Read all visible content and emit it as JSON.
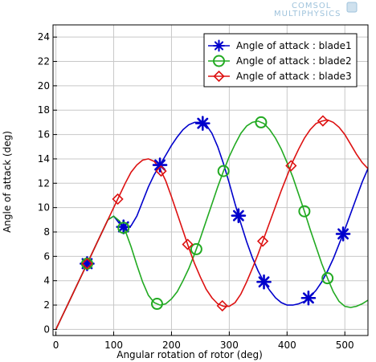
{
  "watermark": {
    "line1": "COMSOL",
    "line2": "MULTIPHYSICS"
  },
  "chart_data": {
    "type": "line",
    "title": "",
    "xlabel": "Angular rotation of rotor (deg)",
    "ylabel": "Angle of attack (deg)",
    "xlim": [
      -5,
      540
    ],
    "ylim": [
      -0.5,
      25
    ],
    "xticks": [
      0,
      100,
      200,
      300,
      400,
      500
    ],
    "yticks": [
      0,
      2,
      4,
      6,
      8,
      10,
      12,
      14,
      16,
      18,
      20,
      22,
      24
    ],
    "grid": true,
    "legend_position": "top-right",
    "series": [
      {
        "name": "Angle of attack : blade1",
        "color": "#0000cc",
        "marker": "asterisk",
        "x": [
          0,
          10,
          20,
          30,
          40,
          50,
          60,
          70,
          80,
          90,
          100,
          110,
          120,
          130,
          140,
          150,
          160,
          170,
          180,
          190,
          200,
          210,
          220,
          230,
          240,
          250,
          260,
          270,
          280,
          290,
          300,
          310,
          320,
          330,
          340,
          350,
          360,
          370,
          380,
          390,
          400,
          410,
          420,
          430,
          440,
          450,
          460,
          470,
          480,
          490,
          500,
          510,
          520,
          530,
          540
        ],
        "y": [
          0.0,
          1.0,
          2.0,
          3.0,
          4.0,
          5.0,
          6.0,
          7.0,
          8.0,
          9.0,
          9.3,
          8.7,
          8.3,
          8.5,
          9.3,
          10.5,
          11.7,
          12.7,
          13.5,
          14.3,
          15.1,
          15.8,
          16.4,
          16.8,
          17.0,
          17.0,
          16.8,
          16.1,
          15.0,
          13.6,
          12.0,
          10.3,
          8.7,
          7.2,
          5.9,
          4.8,
          3.9,
          3.2,
          2.6,
          2.2,
          2.0,
          2.0,
          2.1,
          2.3,
          2.7,
          3.2,
          3.9,
          4.8,
          5.8,
          7.0,
          8.2,
          9.5,
          10.8,
          12.1,
          13.2
        ],
        "marker_x": [
          54,
          117,
          180,
          254,
          316,
          360,
          437,
          497
        ]
      },
      {
        "name": "Angle of attack : blade2",
        "color": "#22aa22",
        "marker": "circle",
        "x": [
          0,
          10,
          20,
          30,
          40,
          50,
          60,
          70,
          80,
          90,
          100,
          110,
          120,
          130,
          140,
          150,
          160,
          170,
          180,
          190,
          200,
          210,
          220,
          230,
          240,
          250,
          260,
          270,
          280,
          290,
          300,
          310,
          320,
          330,
          340,
          350,
          360,
          370,
          380,
          390,
          400,
          410,
          420,
          430,
          440,
          450,
          460,
          470,
          480,
          490,
          500,
          510,
          520,
          530,
          540
        ],
        "y": [
          0.0,
          1.0,
          2.0,
          3.0,
          4.0,
          5.0,
          6.0,
          7.0,
          8.0,
          9.0,
          9.3,
          8.9,
          8.1,
          6.8,
          5.3,
          3.9,
          2.8,
          2.2,
          2.0,
          2.1,
          2.5,
          3.1,
          4.0,
          5.0,
          6.2,
          7.5,
          8.9,
          10.3,
          11.7,
          13.0,
          14.2,
          15.2,
          16.1,
          16.7,
          17.0,
          17.1,
          16.9,
          16.4,
          15.7,
          14.8,
          13.7,
          12.5,
          11.1,
          9.7,
          8.2,
          6.8,
          5.4,
          4.2,
          3.1,
          2.3,
          1.9,
          1.8,
          1.9,
          2.1,
          2.4
        ],
        "marker_x": [
          54,
          117,
          175,
          243,
          290,
          355,
          430,
          470
        ]
      },
      {
        "name": "Angle of attack : blade3",
        "color": "#dd1111",
        "marker": "diamond",
        "x": [
          0,
          10,
          20,
          30,
          40,
          50,
          60,
          70,
          80,
          90,
          100,
          110,
          120,
          130,
          140,
          150,
          160,
          170,
          180,
          190,
          200,
          210,
          220,
          230,
          240,
          250,
          260,
          270,
          280,
          290,
          300,
          310,
          320,
          330,
          340,
          350,
          360,
          370,
          380,
          390,
          400,
          410,
          420,
          430,
          440,
          450,
          460,
          470,
          480,
          490,
          500,
          510,
          520,
          530,
          540
        ],
        "y": [
          0.0,
          1.0,
          2.0,
          3.0,
          4.0,
          5.0,
          6.0,
          7.0,
          8.0,
          9.0,
          10.0,
          11.0,
          12.0,
          12.9,
          13.5,
          13.9,
          14.0,
          13.8,
          13.2,
          12.2,
          10.9,
          9.5,
          8.1,
          6.7,
          5.4,
          4.3,
          3.3,
          2.6,
          2.1,
          1.9,
          1.9,
          2.2,
          2.9,
          3.9,
          5.0,
          6.2,
          7.5,
          8.8,
          10.1,
          11.4,
          12.6,
          13.8,
          14.8,
          15.7,
          16.4,
          16.9,
          17.1,
          17.2,
          17.0,
          16.6,
          16.0,
          15.2,
          14.4,
          13.7,
          13.2
        ],
        "marker_x": [
          54,
          107,
          182,
          228,
          288,
          358,
          407,
          462
        ]
      }
    ]
  }
}
